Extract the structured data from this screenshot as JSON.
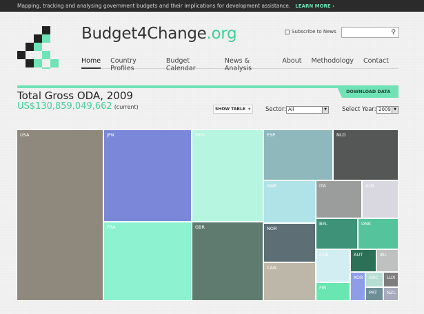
{
  "topbar": {
    "message": "Mapping, tracking and analysing government budgets and their implications for development assistance.",
    "learn_more": "LEARN MORE ›"
  },
  "brand": {
    "name": "Budget4Change",
    "suffix": ".org"
  },
  "header": {
    "subscribe": "Subscribe to News",
    "search_placeholder": "",
    "search_icon": "magnifier-icon"
  },
  "nav": [
    "Home",
    "Country Profiles",
    "Budget Calendar",
    "News & Analysis",
    "About",
    "Methodology",
    "Contact"
  ],
  "download_label": "DOWNLOAD DATA",
  "report": {
    "title": "Total Gross ODA, 2009",
    "amount": "US$130,859,049,662",
    "qualifier": "(current)"
  },
  "controls": {
    "show_table": "SHOW TABLE",
    "sector_label": "Sector:",
    "sector_value": "All",
    "year_label": "Select Year:",
    "year_value": "2009"
  },
  "colors": {
    "accent": "#6fe3b6",
    "brand_green": "#3fcf9a"
  },
  "treemap": [
    {
      "code": "USA",
      "color": "#8f897d"
    },
    {
      "code": "JPN",
      "color": "#7b87d9"
    },
    {
      "code": "FRA",
      "color": "#8cf2d0"
    },
    {
      "code": "DEU",
      "color": "#b6f5df"
    },
    {
      "code": "GBR",
      "color": "#5f7b70"
    },
    {
      "code": "ESP",
      "color": "#8fb8bd"
    },
    {
      "code": "NLD",
      "color": "#555757"
    },
    {
      "code": "SWE",
      "color": "#b0e3e8"
    },
    {
      "code": "NOR",
      "color": "#5d6e74"
    },
    {
      "code": "CAN",
      "color": "#bdb7a9"
    },
    {
      "code": "ITA",
      "color": "#9b9d9c"
    },
    {
      "code": "AUS",
      "color": "#d9d7e0"
    },
    {
      "code": "BEL",
      "color": "#3e9278"
    },
    {
      "code": "DNK",
      "color": "#55c39c"
    },
    {
      "code": "CHE",
      "color": "#d2eef2"
    },
    {
      "code": "AUT",
      "color": "#2d7058"
    },
    {
      "code": "IRL",
      "color": "#bfc1c1"
    },
    {
      "code": "FIN",
      "color": "#6ae6b2"
    },
    {
      "code": "KOR",
      "color": "#8d9de8"
    },
    {
      "code": "GRC",
      "color": "#b6ddd1"
    },
    {
      "code": "LUX",
      "color": "#7d7d7d"
    },
    {
      "code": "PRT",
      "color": "#6f8f97"
    },
    {
      "code": "NZL",
      "color": "#a8abbb"
    }
  ]
}
